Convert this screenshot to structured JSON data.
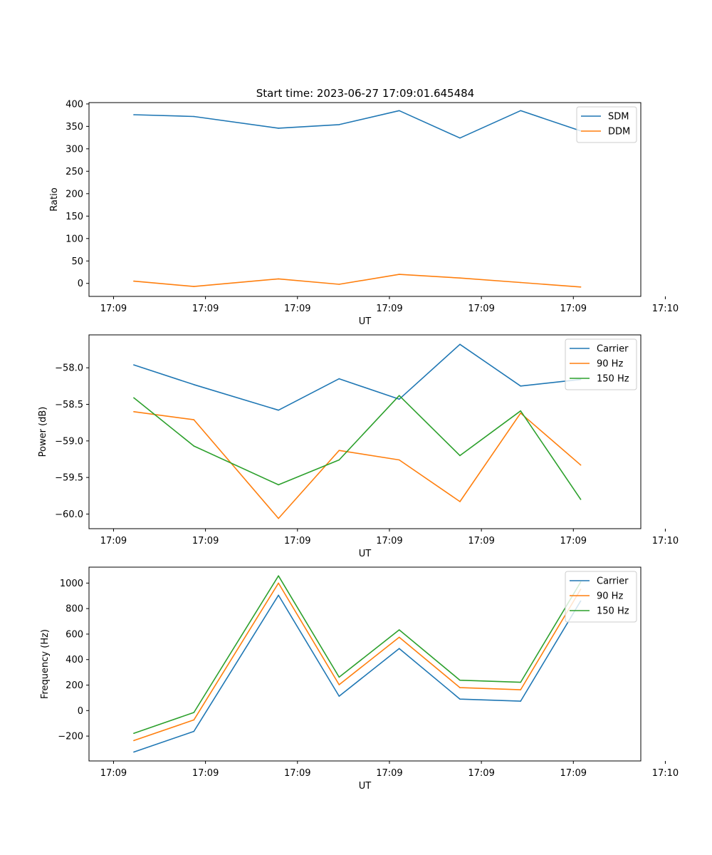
{
  "figure": {
    "title": "Start time: 2023-06-27 17:09:01.645484"
  },
  "chart_data": [
    {
      "type": "line",
      "title": "Start time: 2023-06-27 17:09:01.645484",
      "xlabel": "UT",
      "ylabel": "Ratio",
      "x_tick_labels": [
        "17:09",
        "17:09",
        "17:09",
        "17:09",
        "17:09",
        "17:09",
        "17:10"
      ],
      "y_ticks": [
        0,
        50,
        100,
        150,
        200,
        250,
        300,
        350,
        400
      ],
      "xlim": [
        -0.4,
        8.6
      ],
      "ylim": [
        -29,
        403
      ],
      "legend": "upper right",
      "x": [
        0.33,
        1.31,
        2.69,
        3.68,
        4.66,
        5.65,
        6.64,
        7.62
      ],
      "series": [
        {
          "name": "SDM",
          "color": "#1f77b4",
          "values": [
            376,
            372,
            346,
            354,
            385,
            324,
            385,
            340
          ]
        },
        {
          "name": "DDM",
          "color": "#ff7f0e",
          "values": [
            5,
            -7,
            10,
            -2,
            20,
            12,
            2,
            -8
          ]
        }
      ]
    },
    {
      "type": "line",
      "xlabel": "UT",
      "ylabel": "Power (dB)",
      "x_tick_labels": [
        "17:09",
        "17:09",
        "17:09",
        "17:09",
        "17:09",
        "17:09",
        "17:10"
      ],
      "y_ticks": [
        -60.0,
        -59.5,
        -59.0,
        -58.5,
        -58.0
      ],
      "y_tick_labels": [
        "−60.0",
        "−59.5",
        "−59.0",
        "−58.5",
        "−58.0"
      ],
      "xlim": [
        -0.4,
        8.6
      ],
      "ylim": [
        -60.2,
        -57.55
      ],
      "legend": "upper right",
      "x": [
        0.33,
        1.31,
        2.69,
        3.68,
        4.66,
        5.65,
        6.64,
        7.62
      ],
      "series": [
        {
          "name": "Carrier",
          "color": "#1f77b4",
          "values": [
            -57.96,
            -58.23,
            -58.58,
            -58.15,
            -58.43,
            -57.68,
            -58.25,
            -58.16
          ]
        },
        {
          "name": "90 Hz",
          "color": "#ff7f0e",
          "values": [
            -58.6,
            -58.71,
            -60.06,
            -59.13,
            -59.26,
            -59.83,
            -58.62,
            -59.33
          ]
        },
        {
          "name": "150 Hz",
          "color": "#2ca02c",
          "values": [
            -58.41,
            -59.07,
            -59.6,
            -59.26,
            -58.38,
            -59.2,
            -58.59,
            -59.8
          ]
        }
      ]
    },
    {
      "type": "line",
      "xlabel": "UT",
      "ylabel": "Frequency (Hz)",
      "x_tick_labels": [
        "17:09",
        "17:09",
        "17:09",
        "17:09",
        "17:09",
        "17:09",
        "17:10"
      ],
      "y_ticks": [
        -200,
        0,
        200,
        400,
        600,
        800,
        1000
      ],
      "y_tick_labels": [
        "−200",
        "0",
        "200",
        "400",
        "600",
        "800",
        "1000"
      ],
      "xlim": [
        -0.4,
        8.6
      ],
      "ylim": [
        -395,
        1125
      ],
      "legend": "upper right",
      "x": [
        0.33,
        1.31,
        2.69,
        3.68,
        4.66,
        5.65,
        6.64,
        7.62
      ],
      "series": [
        {
          "name": "Carrier",
          "color": "#1f77b4",
          "values": [
            -325,
            -163,
            905,
            113,
            487,
            90,
            74,
            860
          ]
        },
        {
          "name": "90 Hz",
          "color": "#ff7f0e",
          "values": [
            -235,
            -73,
            1000,
            203,
            575,
            180,
            163,
            952
          ]
        },
        {
          "name": "150 Hz",
          "color": "#2ca02c",
          "values": [
            -178,
            -15,
            1057,
            262,
            633,
            238,
            222,
            1008
          ]
        }
      ]
    }
  ]
}
